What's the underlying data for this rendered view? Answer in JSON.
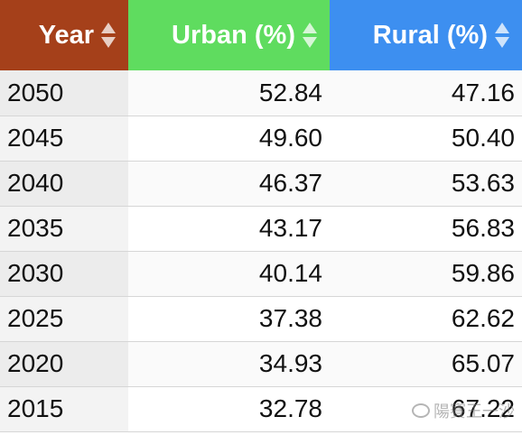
{
  "table": {
    "headers": [
      {
        "label": "Year",
        "color": "#a5401a"
      },
      {
        "label": "Urban (%)",
        "color": "#5fdc5f"
      },
      {
        "label": "Rural (%)",
        "color": "#3d8ff0"
      }
    ],
    "rows": [
      {
        "year": "2050",
        "urban": "52.84",
        "rural": "47.16"
      },
      {
        "year": "2045",
        "urban": "49.60",
        "rural": "50.40"
      },
      {
        "year": "2040",
        "urban": "46.37",
        "rural": "53.63"
      },
      {
        "year": "2035",
        "urban": "43.17",
        "rural": "56.83"
      },
      {
        "year": "2030",
        "urban": "40.14",
        "rural": "59.86"
      },
      {
        "year": "2025",
        "urban": "37.38",
        "rural": "62.62"
      },
      {
        "year": "2020",
        "urban": "34.93",
        "rural": "65.07"
      },
      {
        "year": "2015",
        "urban": "32.78",
        "rural": "67.22"
      }
    ]
  },
  "icons": {
    "sort": "sort-arrows-icon",
    "watermark": "wechat-icon"
  },
  "watermark": {
    "text": "陽賽王一沙"
  }
}
